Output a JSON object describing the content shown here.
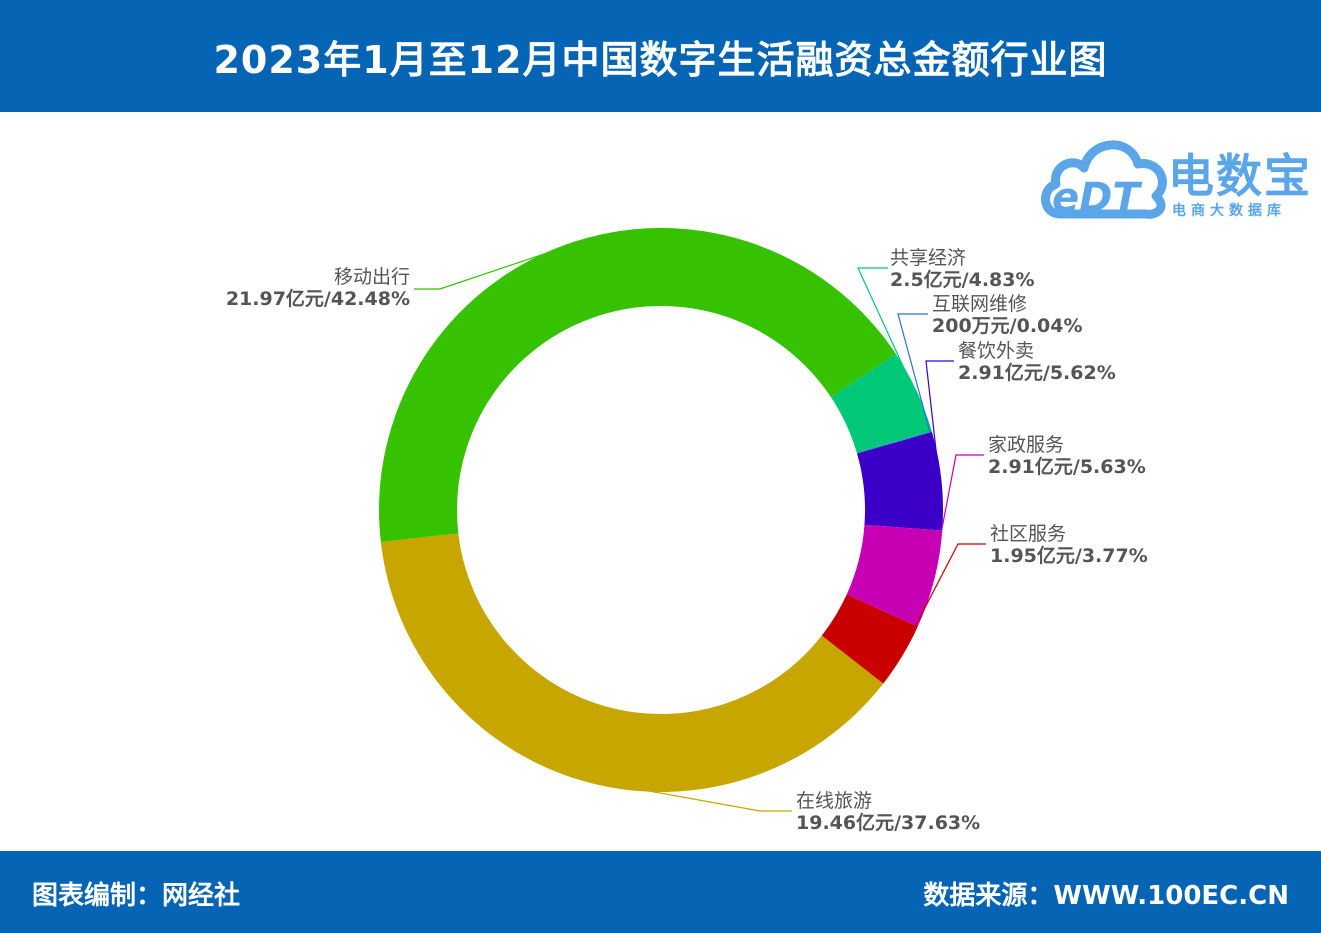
{
  "header": {
    "title": "2023年1月至12月中国数字生活融资总金额行业图"
  },
  "footer": {
    "left": "图表编制：网经社",
    "right": "数据来源：WWW.100EC.CN"
  },
  "logo": {
    "badge": "eDT",
    "name": "电数宝",
    "subtitle": "电商大数据库"
  },
  "colors": {
    "band": "#0564b4",
    "logo": "#5aa6e8"
  },
  "chart_data": {
    "type": "pie",
    "variant": "donut",
    "start_angle_deg": 56.4,
    "direction": "clockwise",
    "slices": [
      {
        "name": "共享经济",
        "value": 4.83,
        "amount": "2.5亿元",
        "value_label": "2.5亿元/4.83%",
        "color": "#00c878"
      },
      {
        "name": "互联网维修",
        "value": 0.04,
        "amount": "200万元",
        "value_label": "200万元/0.04%",
        "color": "#2e6fd8"
      },
      {
        "name": "餐饮外卖",
        "value": 5.62,
        "amount": "2.91亿元",
        "value_label": "2.91亿元/5.62%",
        "color": "#3a00c8"
      },
      {
        "name": "家政服务",
        "value": 5.63,
        "amount": "2.91亿元",
        "value_label": "2.91亿元/5.63%",
        "color": "#c800b4"
      },
      {
        "name": "社区服务",
        "value": 3.77,
        "amount": "1.95亿元",
        "value_label": "1.95亿元/3.77%",
        "color": "#c80000"
      },
      {
        "name": "在线旅游",
        "value": 37.63,
        "amount": "19.46亿元",
        "value_label": "19.46亿元/37.63%",
        "color": "#c8a600"
      },
      {
        "name": "移动出行",
        "value": 42.48,
        "amount": "21.97亿元",
        "value_label": "21.97亿元/42.48%",
        "color": "#36c200"
      }
    ]
  }
}
